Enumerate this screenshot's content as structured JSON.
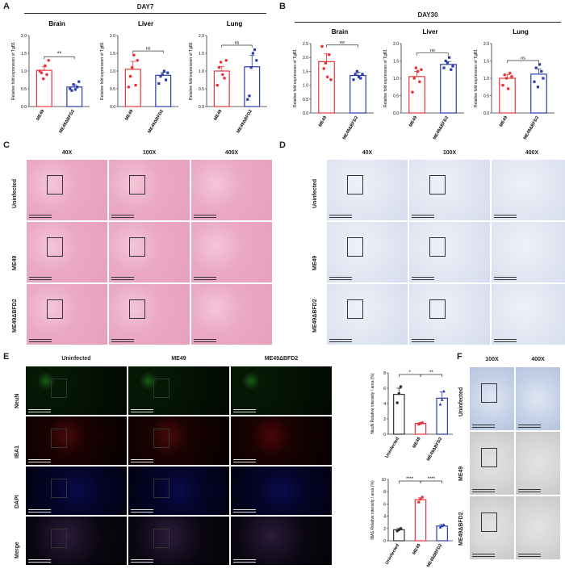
{
  "panels": {
    "A": "A",
    "B": "B",
    "C": "C",
    "D": "D",
    "E": "E",
    "F": "F"
  },
  "panelA": {
    "title": "DAY7",
    "charts": [
      {
        "title": "Brain",
        "sig": "**",
        "ylabel": "Relative fold expression of TgB1",
        "yticks": [
          "0.0",
          "0.5",
          "1.0",
          "1.5",
          "2.0"
        ],
        "ymax": 2.0,
        "categories": [
          "ME49",
          "ME49ΔBFD2"
        ],
        "means": [
          1.02,
          0.55
        ],
        "err": [
          0.1,
          0.06
        ],
        "points": [
          [
            1.0,
            0.95,
            0.78,
            1.15,
            0.9,
            1.3
          ],
          [
            0.5,
            0.45,
            0.62,
            0.48,
            0.55,
            0.7
          ]
        ]
      },
      {
        "title": "Liver",
        "sig": "ns",
        "ylabel": "Relative fold expression of TgB1",
        "yticks": [
          "0.0",
          "0.5",
          "1.0",
          "1.5",
          "2.0"
        ],
        "ymax": 2.0,
        "categories": [
          "ME49",
          "ME49ΔBFD2"
        ],
        "means": [
          1.05,
          0.88
        ],
        "err": [
          0.22,
          0.08
        ],
        "points": [
          [
            0.55,
            0.85,
            1.1,
            1.45,
            0.6,
            1.3
          ],
          [
            0.65,
            0.85,
            0.9,
            1.0,
            0.75,
            0.95
          ]
        ]
      },
      {
        "title": "Lung",
        "sig": "ns",
        "ylabel": "Relative fold expression of TgB1",
        "yticks": [
          "0.0",
          "0.5",
          "1.0",
          "1.5",
          "2.0"
        ],
        "ymax": 2.0,
        "categories": [
          "ME49",
          "ME49ΔBFD2"
        ],
        "means": [
          1.0,
          1.12
        ],
        "err": [
          0.13,
          0.32
        ],
        "points": [
          [
            0.6,
            1.1,
            1.25,
            0.9,
            0.8,
            1.3
          ],
          [
            0.2,
            0.3,
            1.1,
            1.5,
            1.6,
            1.3
          ]
        ]
      }
    ]
  },
  "panelB": {
    "title": "DAY30",
    "charts": [
      {
        "title": "Brain",
        "sig": "ns",
        "ylabel": "Relative fold expression of TgB1",
        "yticks": [
          "0.0",
          "0.5",
          "1.0",
          "1.5",
          "2.0",
          "2.5"
        ],
        "ymax": 2.5,
        "categories": [
          "ME49",
          "ME49ΔBFD2"
        ],
        "means": [
          1.85,
          1.35
        ],
        "err": [
          0.28,
          0.12
        ],
        "points": [
          [
            2.4,
            1.6,
            1.8,
            1.3,
            2.1,
            1.2
          ],
          [
            1.2,
            1.4,
            1.5,
            1.3,
            1.25,
            1.4
          ]
        ]
      },
      {
        "title": "Liver",
        "sig": "ns",
        "ylabel": "Relative fold expression of TgB1",
        "yticks": [
          "0.0",
          "0.5",
          "1.0",
          "1.5",
          "2.0"
        ],
        "ymax": 2.0,
        "categories": [
          "ME49",
          "ME49ΔBFD2"
        ],
        "means": [
          1.05,
          1.4
        ],
        "err": [
          0.15,
          0.08
        ],
        "points": [
          [
            0.6,
            1.0,
            1.3,
            1.2,
            0.9,
            1.25
          ],
          [
            1.3,
            1.5,
            1.45,
            1.6,
            1.25,
            1.35
          ]
        ]
      },
      {
        "title": "Lung",
        "sig": "ns",
        "ylabel": "Relative fold expression of TgB1",
        "yticks": [
          "0.0",
          "0.5",
          "1.0",
          "1.5",
          "2.0"
        ],
        "ymax": 2.0,
        "categories": [
          "ME49",
          "ME49ΔBFD2"
        ],
        "means": [
          1.0,
          1.12
        ],
        "err": [
          0.1,
          0.15
        ],
        "points": [
          [
            0.8,
            1.1,
            1.0,
            0.7,
            1.15,
            1.05
          ],
          [
            0.9,
            1.3,
            0.75,
            1.4,
            1.2,
            1.0
          ]
        ]
      }
    ]
  },
  "panelC": {
    "cols": [
      "40X",
      "100X",
      "400X"
    ],
    "rows": [
      "Uninfected",
      "ME49",
      "ME49ΔBFD2"
    ]
  },
  "panelD": {
    "cols": [
      "40X",
      "100X",
      "400X"
    ],
    "rows": [
      "Uninfected",
      "ME49",
      "ME49ΔBFD2"
    ]
  },
  "panelE": {
    "cols": [
      "Uninfected",
      "ME49",
      "ME49ΔBFD2"
    ],
    "rows": [
      "NeuN",
      "IBA1",
      "DAPI",
      "Merge"
    ],
    "charts": [
      {
        "ylabel": "NeuN Relative intensity / area (%)",
        "yticks": [
          "0",
          "2",
          "4",
          "6",
          "8"
        ],
        "ymax": 8,
        "sig": [
          "*",
          "**"
        ],
        "categories": [
          "Uninfected",
          "ME49",
          "ME49ΔBFD2"
        ],
        "means": [
          5.2,
          1.4,
          4.7
        ],
        "err": [
          0.8,
          0.1,
          0.8
        ],
        "points": [
          [
            4.1,
            5.3,
            6.2
          ],
          [
            1.3,
            1.4,
            1.5
          ],
          [
            3.9,
            4.5,
            5.6
          ]
        ]
      },
      {
        "ylabel": "IBA1 Relative intensity / area (%)",
        "yticks": [
          "0",
          "2",
          "4",
          "6",
          "8",
          "10"
        ],
        "ymax": 10,
        "sig": [
          "****",
          "****"
        ],
        "categories": [
          "Uninfected",
          "ME49",
          "ME49ΔBFD2"
        ],
        "means": [
          1.8,
          6.7,
          2.4
        ],
        "err": [
          0.2,
          0.3,
          0.25
        ],
        "points": [
          [
            1.6,
            1.8,
            2.0
          ],
          [
            6.3,
            6.8,
            7.1
          ],
          [
            2.2,
            2.4,
            2.6
          ]
        ]
      }
    ]
  },
  "panelF": {
    "cols": [
      "100X",
      "400X"
    ],
    "rows": [
      "Uninfected",
      "ME49",
      "ME49ΔBFD2"
    ]
  },
  "colors": {
    "red": "#e8353b",
    "blue": "#2a3cae"
  }
}
